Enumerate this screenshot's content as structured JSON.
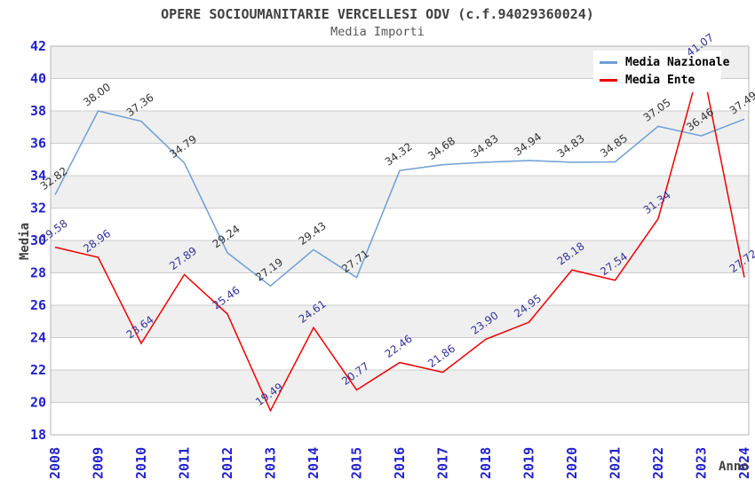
{
  "chart_data": {
    "type": "line",
    "title": "OPERE SOCIOUMANITARIE VERCELLESI ODV (c.f.94029360024)",
    "subtitle": "Media Importi",
    "xlabel": "Anno",
    "ylabel": "Media",
    "x": [
      2008,
      2009,
      2010,
      2011,
      2012,
      2013,
      2014,
      2015,
      2016,
      2017,
      2018,
      2019,
      2020,
      2021,
      2022,
      2023,
      2024
    ],
    "ylim": [
      18,
      42
    ],
    "ytick_step": 2,
    "grid": true,
    "legend_position": "top-right",
    "series": [
      {
        "name": "Media Nazionale",
        "color": "#6E9ED6",
        "label_color": "#333333",
        "values": [
          32.82,
          38.0,
          37.36,
          34.79,
          29.24,
          27.19,
          29.43,
          27.71,
          34.32,
          34.68,
          34.83,
          34.94,
          34.83,
          34.85,
          37.05,
          36.46,
          37.49
        ]
      },
      {
        "name": "Media Ente",
        "color": "#EE0000",
        "label_color": "#333399",
        "values": [
          29.58,
          28.96,
          23.64,
          27.89,
          25.46,
          19.49,
          24.61,
          20.77,
          22.46,
          21.86,
          23.9,
          24.95,
          28.18,
          27.54,
          31.34,
          41.07,
          27.72
        ]
      }
    ],
    "colors": {
      "axis_tick": "#2222CC",
      "band": "#EFEFEF",
      "grid": "#CCCCCC",
      "border": "#B3B3B3",
      "title": "#404040",
      "subtitle": "#555555",
      "background": "#FFFFFF"
    }
  }
}
